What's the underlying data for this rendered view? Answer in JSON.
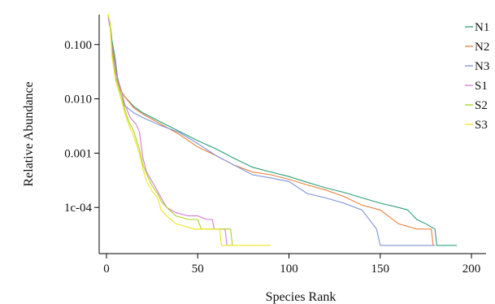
{
  "chart_data": {
    "type": "line",
    "title": "",
    "xlabel": "Species Rank",
    "ylabel": "Relative Abundance",
    "xlim": [
      -4,
      208
    ],
    "ylim_log10": [
      -4.85,
      -0.45
    ],
    "y_scale": "log",
    "grid": false,
    "legend_position": "top-right",
    "x_ticks": [
      0,
      50,
      100,
      150,
      200
    ],
    "x_tick_labels": [
      "0",
      "50",
      "100",
      "150",
      "200"
    ],
    "y_ticks": [
      0.1,
      0.01,
      0.001,
      0.0001
    ],
    "y_tick_labels": [
      "0.100",
      "0.010",
      "0.001",
      "1c-04"
    ],
    "series": [
      {
        "name": "N1",
        "color": "#2aa07a",
        "points": [
          [
            1,
            0.34
          ],
          [
            2,
            0.25
          ],
          [
            3,
            0.12
          ],
          [
            5,
            0.05
          ],
          [
            6,
            0.025
          ],
          [
            8,
            0.014
          ],
          [
            10,
            0.011
          ],
          [
            15,
            0.0072
          ],
          [
            20,
            0.0055
          ],
          [
            30,
            0.0037
          ],
          [
            40,
            0.0025
          ],
          [
            50,
            0.0017
          ],
          [
            60,
            0.0012
          ],
          [
            70,
            0.0008
          ],
          [
            80,
            0.00055
          ],
          [
            90,
            0.00045
          ],
          [
            100,
            0.00037
          ],
          [
            110,
            0.00029
          ],
          [
            120,
            0.00023
          ],
          [
            130,
            0.00019
          ],
          [
            140,
            0.00015
          ],
          [
            150,
            0.00012
          ],
          [
            160,
            0.0001
          ],
          [
            165,
            9e-05
          ],
          [
            170,
            6e-05
          ],
          [
            175,
            5e-05
          ],
          [
            180,
            4e-05
          ],
          [
            181,
            2e-05
          ],
          [
            192,
            2e-05
          ]
        ]
      },
      {
        "name": "N2",
        "color": "#e8823c",
        "points": [
          [
            1,
            0.32
          ],
          [
            2,
            0.22
          ],
          [
            3,
            0.1
          ],
          [
            5,
            0.045
          ],
          [
            6,
            0.022
          ],
          [
            8,
            0.014
          ],
          [
            10,
            0.011
          ],
          [
            15,
            0.0068
          ],
          [
            20,
            0.0052
          ],
          [
            30,
            0.0034
          ],
          [
            40,
            0.0022
          ],
          [
            50,
            0.0013
          ],
          [
            60,
            0.0009
          ],
          [
            70,
            0.0006
          ],
          [
            80,
            0.00045
          ],
          [
            90,
            0.0004
          ],
          [
            100,
            0.00033
          ],
          [
            110,
            0.00026
          ],
          [
            120,
            0.00021
          ],
          [
            130,
            0.00016
          ],
          [
            140,
            0.00011
          ],
          [
            150,
            9e-05
          ],
          [
            160,
            5e-05
          ],
          [
            170,
            4e-05
          ],
          [
            178,
            4e-05
          ],
          [
            179,
            2e-05
          ],
          [
            180,
            2e-05
          ]
        ]
      },
      {
        "name": "N3",
        "color": "#7b93d8",
        "points": [
          [
            1,
            0.3
          ],
          [
            2,
            0.2
          ],
          [
            3,
            0.09
          ],
          [
            5,
            0.04
          ],
          [
            6,
            0.02
          ],
          [
            8,
            0.012
          ],
          [
            10,
            0.0075
          ],
          [
            15,
            0.0055
          ],
          [
            20,
            0.0045
          ],
          [
            30,
            0.0032
          ],
          [
            40,
            0.0024
          ],
          [
            50,
            0.0015
          ],
          [
            60,
            0.0009
          ],
          [
            70,
            0.0006
          ],
          [
            80,
            0.0004
          ],
          [
            90,
            0.00035
          ],
          [
            100,
            0.0003
          ],
          [
            110,
            0.00018
          ],
          [
            120,
            0.00015
          ],
          [
            130,
            0.00012
          ],
          [
            140,
            9e-05
          ],
          [
            148,
            4e-05
          ],
          [
            150,
            2e-05
          ],
          [
            180,
            2e-05
          ]
        ]
      },
      {
        "name": "S1",
        "color": "#d47ad9",
        "points": [
          [
            1,
            0.33
          ],
          [
            2,
            0.22
          ],
          [
            3,
            0.08
          ],
          [
            5,
            0.03
          ],
          [
            8,
            0.015
          ],
          [
            10,
            0.008
          ],
          [
            13,
            0.0045
          ],
          [
            16,
            0.0035
          ],
          [
            18,
            0.0025
          ],
          [
            20,
            0.0008
          ],
          [
            22,
            0.00045
          ],
          [
            25,
            0.0003
          ],
          [
            28,
            0.0002
          ],
          [
            30,
            0.00015
          ],
          [
            33,
            0.0001
          ],
          [
            38,
            8e-05
          ],
          [
            45,
            7e-05
          ],
          [
            50,
            7e-05
          ],
          [
            55,
            6e-05
          ],
          [
            58,
            6e-05
          ],
          [
            59,
            4e-05
          ],
          [
            65,
            4e-05
          ],
          [
            66,
            2e-05
          ],
          [
            69,
            2e-05
          ]
        ]
      },
      {
        "name": "S2",
        "color": "#a8d61a",
        "points": [
          [
            1,
            0.35
          ],
          [
            2,
            0.25
          ],
          [
            3,
            0.07
          ],
          [
            5,
            0.025
          ],
          [
            8,
            0.012
          ],
          [
            10,
            0.0065
          ],
          [
            12,
            0.004
          ],
          [
            15,
            0.0025
          ],
          [
            18,
            0.0012
          ],
          [
            20,
            0.0006
          ],
          [
            23,
            0.00035
          ],
          [
            25,
            0.00025
          ],
          [
            28,
            0.00018
          ],
          [
            30,
            0.00013
          ],
          [
            33,
            0.0001
          ],
          [
            38,
            7e-05
          ],
          [
            45,
            6e-05
          ],
          [
            50,
            6e-05
          ],
          [
            52,
            4e-05
          ],
          [
            68,
            4e-05
          ],
          [
            69,
            2e-05
          ],
          [
            72,
            2e-05
          ]
        ]
      },
      {
        "name": "S3",
        "color": "#f0e41c",
        "points": [
          [
            1,
            0.36
          ],
          [
            2,
            0.24
          ],
          [
            3,
            0.06
          ],
          [
            5,
            0.022
          ],
          [
            8,
            0.01
          ],
          [
            10,
            0.0055
          ],
          [
            12,
            0.0035
          ],
          [
            15,
            0.002
          ],
          [
            18,
            0.001
          ],
          [
            20,
            0.0005
          ],
          [
            22,
            0.0003
          ],
          [
            25,
            0.0002
          ],
          [
            28,
            0.00015
          ],
          [
            30,
            9e-05
          ],
          [
            33,
            7e-05
          ],
          [
            38,
            5e-05
          ],
          [
            48,
            4e-05
          ],
          [
            49,
            4e-05
          ],
          [
            50,
            4e-05
          ],
          [
            62,
            4e-05
          ],
          [
            63,
            2e-05
          ],
          [
            90,
            2e-05
          ]
        ]
      }
    ]
  }
}
